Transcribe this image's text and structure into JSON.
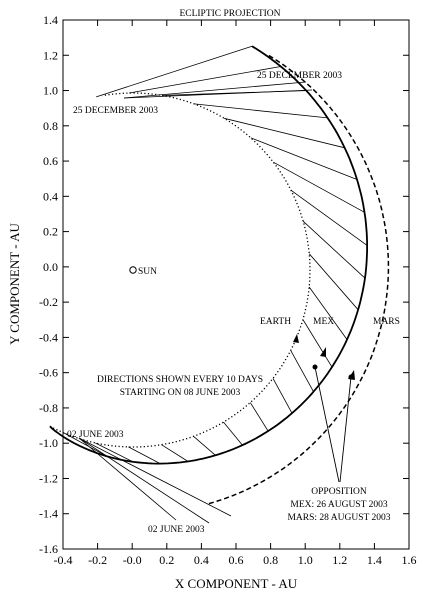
{
  "title": "ECLIPTIC PROJECTION",
  "x_axis": {
    "label": "X COMPONENT - AU",
    "ticks": [
      "-0.4",
      "-0.2",
      "-0.0",
      "0.2",
      "0.4",
      "0.6",
      "0.8",
      "1.0",
      "1.2",
      "1.4",
      "1.6"
    ]
  },
  "y_axis": {
    "label": "Y COMPONENT - AU",
    "ticks": [
      "1.4",
      "1.2",
      "1.0",
      "0.8",
      "0.6",
      "0.4",
      "0.2",
      "0.0",
      "-0.2",
      "-0.4",
      "-0.6",
      "-0.8",
      "-1.0",
      "-1.2",
      "-1.4",
      "-1.6"
    ]
  },
  "annotations": {
    "sun": "SUN",
    "earth": "EARTH",
    "mex": "MEX",
    "mars": "MARS",
    "top_right_date": "25 DECEMBER 2003",
    "top_left_date": "25 DECEMBER 2003",
    "bottom_left_date": "02 JUNE 2003",
    "bottom_date": "02 JUNE 2003",
    "directions_line1": "DIRECTIONS SHOWN EVERY 10 DAYS",
    "directions_line2": "STARTING ON 08 JUNE 2003",
    "opposition_title": "OPPOSITION",
    "opposition_mex": "MEX: 26 AUGUST 2003",
    "opposition_mars": "MARS: 28 AUGUST 2003"
  }
}
